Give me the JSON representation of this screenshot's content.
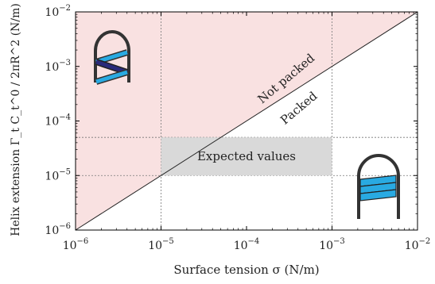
{
  "chart_data": {
    "type": "area",
    "title": "",
    "xlabel": "Surface tension σ (N/m)",
    "ylabel": "Helix extension Γ_t C_t^0 / 2πR^2 (N/m)",
    "x_scale": "log",
    "y_scale": "log",
    "xlim": [
      1e-06,
      0.01
    ],
    "ylim": [
      1e-06,
      0.01
    ],
    "x_ticks": [
      {
        "value": 1e-06,
        "label": "10^-6"
      },
      {
        "value": 1e-05,
        "label": "10^-5"
      },
      {
        "value": 0.0001,
        "label": "10^-4"
      },
      {
        "value": 0.001,
        "label": "10^-3"
      },
      {
        "value": 0.01,
        "label": "10^-2"
      }
    ],
    "y_ticks": [
      {
        "value": 1e-06,
        "label": "10^-6"
      },
      {
        "value": 1e-05,
        "label": "10^-5"
      },
      {
        "value": 0.0001,
        "label": "10^-4"
      },
      {
        "value": 0.001,
        "label": "10^-3"
      },
      {
        "value": 0.01,
        "label": "10^-2"
      }
    ],
    "boundary_line": {
      "x": [
        1e-06,
        0.01
      ],
      "y": [
        1e-06,
        0.01
      ]
    },
    "regions": [
      {
        "name": "Not packed",
        "side": "above",
        "color": "#f9e1e1"
      },
      {
        "name": "Packed",
        "side": "below",
        "color": "#ffffff"
      }
    ],
    "expected_box": {
      "label": "Expected values",
      "x": [
        1e-05,
        0.001
      ],
      "y": [
        1e-05,
        5e-05
      ],
      "color": "#d9d9d9"
    },
    "grid_lines": {
      "x": [
        1e-05,
        0.001
      ],
      "y": [
        1e-05,
        5e-05
      ]
    },
    "annotations": [
      {
        "text": "Not packed",
        "x": 0.00035,
        "y": 0.00055
      },
      {
        "text": "Packed",
        "x": 0.00055,
        "y": 0.00024
      }
    ],
    "icons": [
      "helix-loose-icon",
      "helix-packed-icon"
    ],
    "colors": {
      "helix": "#29aae2",
      "helix_back": "#2a2a7a",
      "frame": "#333333"
    }
  }
}
